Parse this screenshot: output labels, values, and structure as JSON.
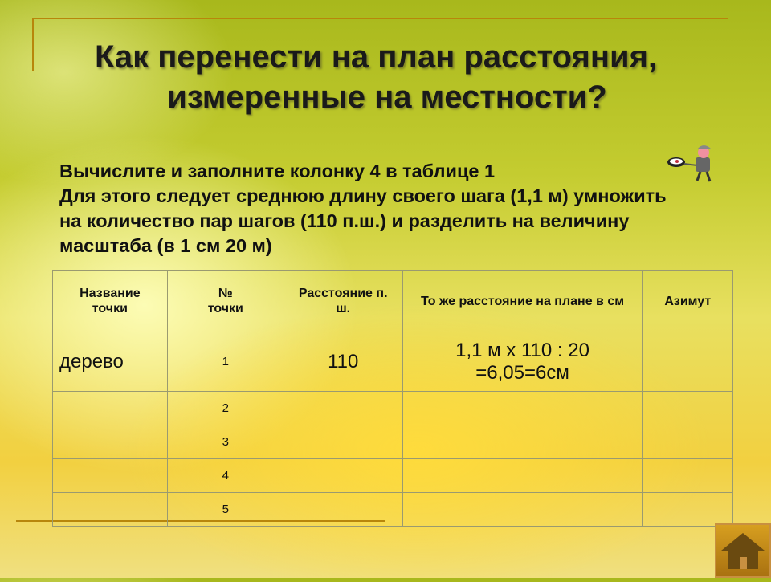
{
  "title": {
    "line1": "Как перенести на план расстояния,",
    "line2": "измеренные на местности?"
  },
  "instructions": [
    "Вычислите и заполните колонку 4 в таблице 1",
    "Для этого следует среднюю длину своего шага (1,1 м) умножить",
    "на количество пар шагов (110 п.ш.) и разделить на величину",
    "масштаба (в 1 см 20 м)"
  ],
  "table": {
    "headers": [
      "Название точки",
      "№ точки",
      "Расстояние п. ш.",
      "То же расстояние на плане в см",
      "Азимут"
    ],
    "rows": [
      {
        "name": "дерево",
        "number": "1",
        "distance": "110",
        "plan_line1": "1,1 м х 110 : 20",
        "plan_line2": "=6,05=6см",
        "azimuth": ""
      },
      {
        "name": "",
        "number": "2",
        "distance": "",
        "plan_line1": "",
        "plan_line2": "",
        "azimuth": ""
      },
      {
        "name": "",
        "number": "3",
        "distance": "",
        "plan_line1": "",
        "plan_line2": "",
        "azimuth": ""
      },
      {
        "name": "",
        "number": "4",
        "distance": "",
        "plan_line1": "",
        "plan_line2": "",
        "azimuth": ""
      },
      {
        "name": "",
        "number": "5",
        "distance": "",
        "plan_line1": "",
        "plan_line2": "",
        "azimuth": ""
      }
    ]
  },
  "icons": {
    "home": "home-icon",
    "figure": "cartoon-man-with-frying-pan"
  },
  "colors": {
    "accent_line": "#b8860b",
    "home_button": "#c89020"
  }
}
